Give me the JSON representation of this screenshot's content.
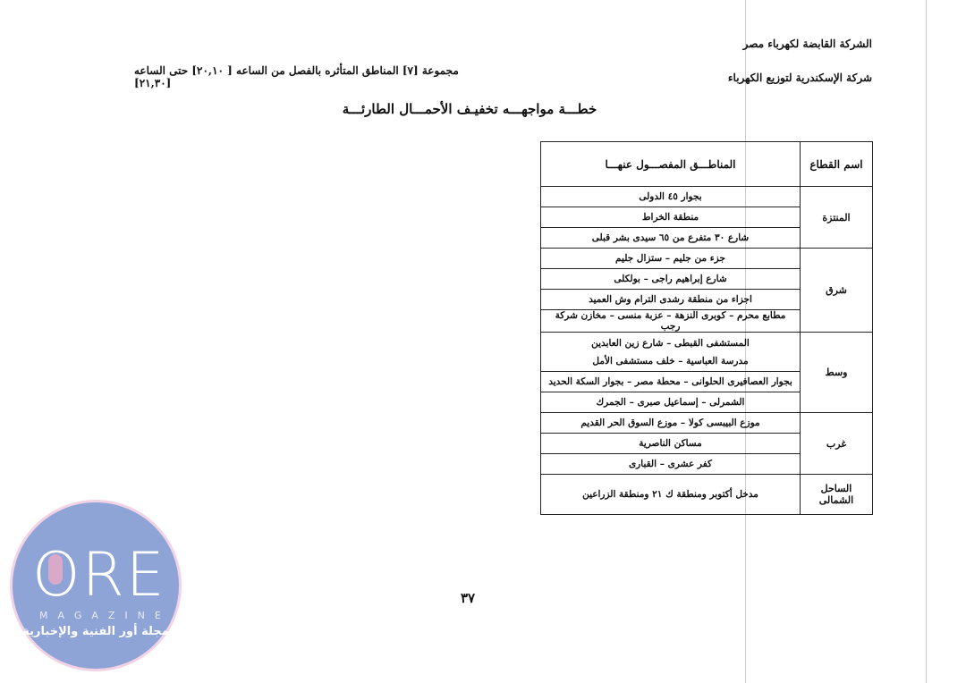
{
  "header": {
    "company_holding": "الشركة القابضة لكهرباء مصر",
    "company_local": "شركة الإسكندرية لتوزيع الكهرباء",
    "group_line": "مجموعة [٧] المناطق المتأثره بالفصل من الساعه [ ٢٠,١٠] حتى الساعه [٢١,٣٠]",
    "title": "خطـــة مواجهـــه تخفيـف الأحمـــال الطارئـــة"
  },
  "table": {
    "headers": {
      "sector": "اسم القطاع",
      "areas": "المناطـــق المفصـــول عنهـــا"
    },
    "sectors": [
      {
        "name": "المنتزة",
        "areas": [
          "بجوار ٤٥ الدولى",
          "منطقة الخراط",
          "شارع ٣٠ متفرع من ٦٥ سيدى بشر قبلى"
        ]
      },
      {
        "name": "شرق",
        "areas": [
          "جزء من جليم – ستزال جليم",
          "شارع إبراهيم راجى – بولكلى",
          "اجزاء من منطقة رشدى الترام وش العميد",
          "مطابع محرم – كوبرى النزهة – عزبة منسى – مخازن شركة رجب"
        ]
      },
      {
        "name": "وسط",
        "areas": [
          "المستشفى القبطى – شارع زين العابدين مدرسة العباسية – خلف مستشفى الأمل",
          "بجوار العصافيرى الحلوانى – محطة مصر – بجوار السكة الحديد",
          "الشمرلى – إسماعيل صبرى – الجمرك"
        ]
      },
      {
        "name": "غرب",
        "areas": [
          "موزع البيبسى كولا – موزع السوق الحر القديم",
          "مساكن الناصرية",
          "كفر عشرى – القبارى"
        ]
      },
      {
        "name": "الساحل الشمالى",
        "areas": [
          "مدخل أكتوبر ومنطقة ك ٢١ ومنطقة الزراعين"
        ]
      }
    ]
  },
  "page_number": "٣٧",
  "watermark": {
    "logo_text": "ORE",
    "sub": "MAGAZINE",
    "arabic": "مجلة أور الفنية والإخبارية",
    "color": "#8ea3d6"
  }
}
